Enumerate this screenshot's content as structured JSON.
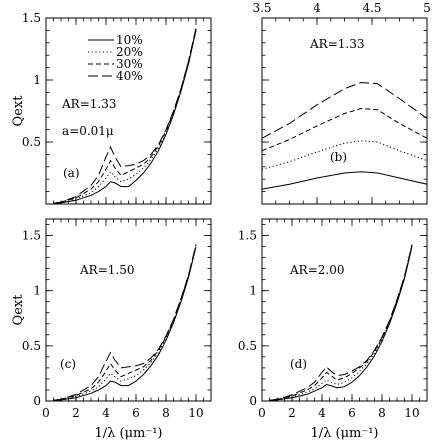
{
  "chart_data": [
    {
      "panel_label": "(a)",
      "type": "line",
      "xlim": [
        0,
        11
      ],
      "ylim": [
        0,
        1.5
      ],
      "ylabel": "Qext",
      "xlabel": "",
      "x_ticks": [
        0,
        2,
        4,
        6,
        8,
        10
      ],
      "y_ticks": [
        0,
        0.5,
        1,
        1.5
      ],
      "y_tick_labels": [
        "",
        "0.5",
        "1",
        "1.5"
      ],
      "legend": [
        "10%",
        "20%",
        "30%",
        "40%"
      ],
      "legend_position": "top-left",
      "annotations": [
        "AR=1.33",
        "a=0.01μ"
      ],
      "series": [
        {
          "dash": "solid",
          "x": [
            0.5,
            1,
            2,
            3,
            3.5,
            4,
            4.3,
            4.6,
            5,
            5.5,
            6,
            6.5,
            7,
            7.5,
            8,
            8.5,
            9,
            9.5,
            10
          ],
          "y": [
            0.005,
            0.01,
            0.03,
            0.07,
            0.1,
            0.14,
            0.18,
            0.17,
            0.14,
            0.14,
            0.19,
            0.25,
            0.33,
            0.43,
            0.56,
            0.72,
            0.91,
            1.13,
            1.4
          ]
        },
        {
          "dash": "dotted",
          "x": [
            0.5,
            1,
            2,
            3,
            3.5,
            4,
            4.3,
            4.6,
            5,
            5.5,
            6,
            6.5,
            7,
            7.5,
            8,
            8.5,
            9,
            9.5,
            10
          ],
          "y": [
            0.005,
            0.01,
            0.04,
            0.09,
            0.14,
            0.21,
            0.26,
            0.22,
            0.18,
            0.2,
            0.24,
            0.29,
            0.36,
            0.45,
            0.57,
            0.73,
            0.92,
            1.14,
            1.41
          ]
        },
        {
          "dash": "dashed",
          "x": [
            0.5,
            1,
            2,
            3,
            3.5,
            4,
            4.3,
            4.6,
            5,
            5.5,
            6,
            6.5,
            7,
            7.5,
            8,
            8.5,
            9,
            9.5,
            10
          ],
          "y": [
            0.005,
            0.015,
            0.05,
            0.12,
            0.18,
            0.28,
            0.35,
            0.29,
            0.23,
            0.26,
            0.29,
            0.32,
            0.38,
            0.47,
            0.59,
            0.74,
            0.93,
            1.15,
            1.41
          ]
        },
        {
          "dash": "longdash",
          "x": [
            0.5,
            1,
            2,
            3,
            3.5,
            4,
            4.3,
            4.6,
            5,
            5.5,
            6,
            6.5,
            7,
            7.5,
            8,
            8.5,
            9,
            9.5,
            10
          ],
          "y": [
            0.005,
            0.015,
            0.06,
            0.15,
            0.23,
            0.38,
            0.46,
            0.38,
            0.3,
            0.31,
            0.32,
            0.35,
            0.4,
            0.48,
            0.6,
            0.75,
            0.93,
            1.15,
            1.42
          ]
        }
      ]
    },
    {
      "panel_label": "(b)",
      "type": "line",
      "xlim": [
        3.5,
        5
      ],
      "ylim": [
        0,
        1.5
      ],
      "x_ticks": [
        3.5,
        4,
        4.5,
        5
      ],
      "x_tick_labels": [
        "3.5",
        "4",
        "4.5",
        "5"
      ],
      "x_ticks_position": "top",
      "annotations": [
        "AR=1.33"
      ],
      "series": [
        {
          "dash": "solid",
          "x": [
            3.5,
            3.75,
            4,
            4.25,
            4.4,
            4.55,
            4.75,
            5
          ],
          "y": [
            0.12,
            0.16,
            0.21,
            0.25,
            0.26,
            0.25,
            0.21,
            0.16
          ]
        },
        {
          "dash": "dotted",
          "x": [
            3.5,
            3.75,
            4,
            4.25,
            4.4,
            4.55,
            4.75,
            5
          ],
          "y": [
            0.28,
            0.34,
            0.42,
            0.49,
            0.51,
            0.5,
            0.43,
            0.35
          ]
        },
        {
          "dash": "dashed",
          "x": [
            3.5,
            3.75,
            4,
            4.25,
            4.4,
            4.55,
            4.75,
            5
          ],
          "y": [
            0.43,
            0.52,
            0.63,
            0.73,
            0.77,
            0.76,
            0.65,
            0.53
          ]
        },
        {
          "dash": "longdash",
          "x": [
            3.5,
            3.75,
            4,
            4.25,
            4.4,
            4.55,
            4.75,
            5
          ],
          "y": [
            0.53,
            0.65,
            0.8,
            0.93,
            0.98,
            0.97,
            0.85,
            0.69
          ]
        }
      ]
    },
    {
      "panel_label": "(c)",
      "type": "line",
      "xlim": [
        0,
        11
      ],
      "ylim": [
        0,
        1.65
      ],
      "ylabel": "Qext",
      "xlabel": "1/λ (μm⁻¹)",
      "x_ticks": [
        0,
        2,
        4,
        6,
        8,
        10
      ],
      "x_tick_labels": [
        "0",
        "2",
        "4",
        "6",
        "8",
        "10"
      ],
      "y_ticks": [
        0,
        0.5,
        1,
        1.5
      ],
      "y_tick_labels": [
        "0",
        "0.5",
        "1",
        "1.5"
      ],
      "annotations": [
        "AR=1.50"
      ],
      "series": [
        {
          "dash": "solid",
          "x": [
            0.5,
            1,
            2,
            3,
            3.5,
            4,
            4.3,
            4.6,
            5,
            5.5,
            6,
            6.5,
            7,
            7.5,
            8,
            8.5,
            9,
            9.5,
            10
          ],
          "y": [
            0.005,
            0.01,
            0.03,
            0.07,
            0.1,
            0.14,
            0.18,
            0.17,
            0.14,
            0.14,
            0.18,
            0.24,
            0.32,
            0.42,
            0.55,
            0.71,
            0.9,
            1.12,
            1.4
          ]
        },
        {
          "dash": "dotted",
          "x": [
            0.5,
            1,
            2,
            3,
            3.5,
            4,
            4.3,
            4.6,
            5,
            5.5,
            6,
            6.5,
            7,
            7.5,
            8,
            8.5,
            9,
            9.5,
            10
          ],
          "y": [
            0.005,
            0.01,
            0.04,
            0.09,
            0.13,
            0.2,
            0.25,
            0.22,
            0.18,
            0.2,
            0.23,
            0.28,
            0.35,
            0.44,
            0.57,
            0.72,
            0.91,
            1.13,
            1.41
          ]
        },
        {
          "dash": "dashed",
          "x": [
            0.5,
            1,
            2,
            3,
            3.5,
            4,
            4.3,
            4.6,
            5,
            5.5,
            6,
            6.5,
            7,
            7.5,
            8,
            8.5,
            9,
            9.5,
            10
          ],
          "y": [
            0.005,
            0.015,
            0.05,
            0.11,
            0.17,
            0.27,
            0.34,
            0.28,
            0.22,
            0.25,
            0.28,
            0.31,
            0.37,
            0.46,
            0.58,
            0.73,
            0.92,
            1.14,
            1.41
          ]
        },
        {
          "dash": "longdash",
          "x": [
            0.5,
            1,
            2,
            3,
            3.5,
            4,
            4.3,
            4.6,
            5,
            5.5,
            6,
            6.5,
            7,
            7.5,
            8,
            8.5,
            9,
            9.5,
            10
          ],
          "y": [
            0.005,
            0.015,
            0.06,
            0.14,
            0.22,
            0.36,
            0.44,
            0.37,
            0.3,
            0.31,
            0.32,
            0.34,
            0.39,
            0.47,
            0.59,
            0.74,
            0.93,
            1.14,
            1.42
          ]
        }
      ]
    },
    {
      "panel_label": "(d)",
      "type": "line",
      "xlim": [
        0,
        11
      ],
      "ylim": [
        0,
        1.65
      ],
      "xlabel": "1/λ (μm⁻¹)",
      "x_ticks": [
        0,
        2,
        4,
        6,
        8,
        10
      ],
      "x_tick_labels": [
        "0",
        "2",
        "4",
        "6",
        "8",
        "10"
      ],
      "y_ticks": [
        0,
        0.5,
        1,
        1.5
      ],
      "y_tick_labels": [
        "0",
        "0.5",
        "1",
        "1.5"
      ],
      "annotations": [
        "AR=2.00"
      ],
      "series": [
        {
          "dash": "solid",
          "x": [
            0.5,
            1,
            2,
            3,
            3.5,
            4,
            4.3,
            4.6,
            5,
            5.5,
            6,
            6.5,
            7,
            7.5,
            8,
            8.5,
            9,
            9.5,
            10
          ],
          "y": [
            0.005,
            0.01,
            0.03,
            0.06,
            0.09,
            0.12,
            0.15,
            0.14,
            0.12,
            0.13,
            0.17,
            0.23,
            0.31,
            0.41,
            0.54,
            0.7,
            0.89,
            1.11,
            1.4
          ]
        },
        {
          "dash": "dotted",
          "x": [
            0.5,
            1,
            2,
            3,
            3.5,
            4,
            4.3,
            4.6,
            5,
            5.5,
            6,
            6.5,
            7,
            7.5,
            8,
            8.5,
            9,
            9.5,
            10
          ],
          "y": [
            0.005,
            0.01,
            0.035,
            0.08,
            0.11,
            0.16,
            0.19,
            0.17,
            0.15,
            0.17,
            0.21,
            0.27,
            0.34,
            0.43,
            0.56,
            0.71,
            0.9,
            1.12,
            1.41
          ]
        },
        {
          "dash": "dashed",
          "x": [
            0.5,
            1,
            2,
            3,
            3.5,
            4,
            4.3,
            4.6,
            5,
            5.5,
            6,
            6.5,
            7,
            7.5,
            8,
            8.5,
            9,
            9.5,
            10
          ],
          "y": [
            0.005,
            0.012,
            0.045,
            0.1,
            0.14,
            0.21,
            0.26,
            0.23,
            0.19,
            0.21,
            0.25,
            0.3,
            0.36,
            0.45,
            0.57,
            0.72,
            0.91,
            1.13,
            1.41
          ]
        },
        {
          "dash": "longdash",
          "x": [
            0.5,
            1,
            2,
            3,
            3.5,
            4,
            4.3,
            4.6,
            5,
            5.5,
            6,
            6.5,
            7,
            7.5,
            8,
            8.5,
            9,
            9.5,
            10
          ],
          "y": [
            0.005,
            0.015,
            0.055,
            0.12,
            0.17,
            0.26,
            0.31,
            0.27,
            0.23,
            0.24,
            0.27,
            0.31,
            0.37,
            0.46,
            0.58,
            0.73,
            0.92,
            1.13,
            1.42
          ]
        }
      ]
    }
  ]
}
